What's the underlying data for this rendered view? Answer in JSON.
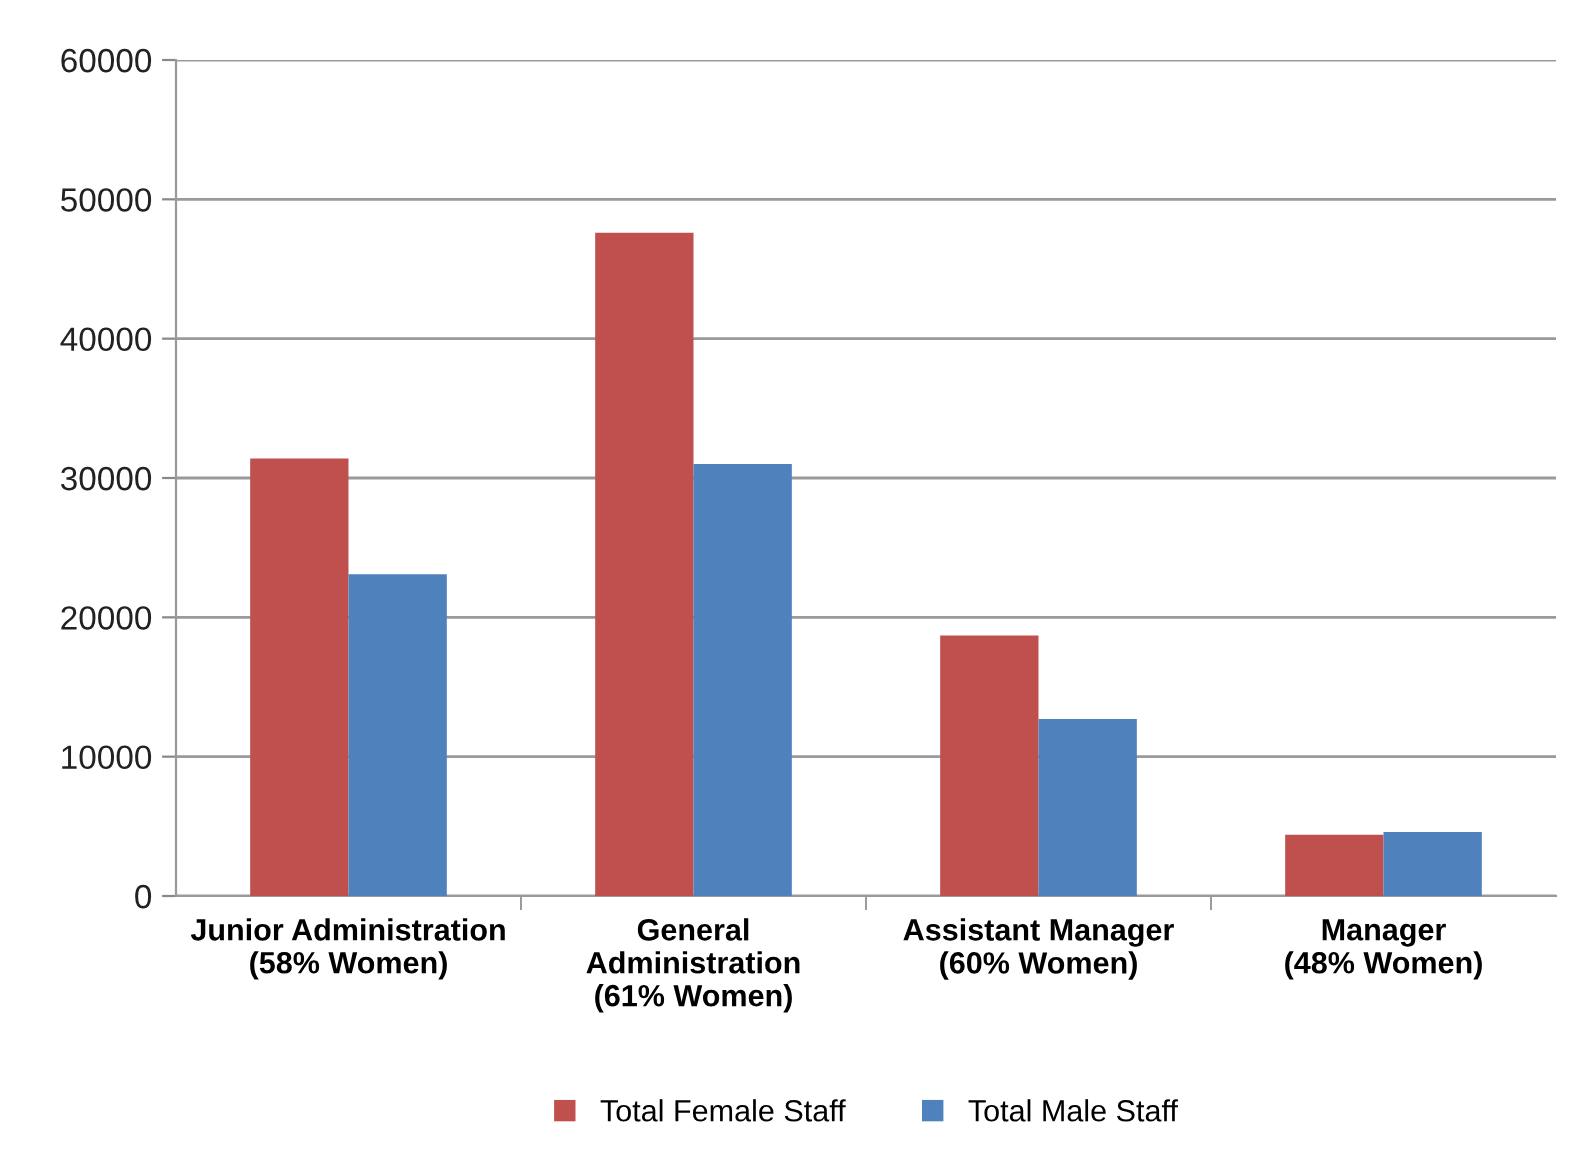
{
  "chart_data": {
    "type": "bar",
    "categories": [
      "Junior Administration\n(58% Women)",
      "General\nAdministration\n(61% Women)",
      "Assistant Manager\n(60% Women)",
      "Manager\n(48% Women)"
    ],
    "series": [
      {
        "name": "Total Female Staff",
        "color": "#c0504d",
        "values": [
          31400,
          47600,
          18700,
          4400
        ]
      },
      {
        "name": "Total Male Staff",
        "color": "#4f81bd",
        "values": [
          23100,
          31000,
          12700,
          4600
        ]
      }
    ],
    "ylim": [
      0,
      60000
    ],
    "yticks": [
      0,
      10000,
      20000,
      30000,
      40000,
      50000,
      60000
    ],
    "grid": "y",
    "legend": "bottom"
  }
}
